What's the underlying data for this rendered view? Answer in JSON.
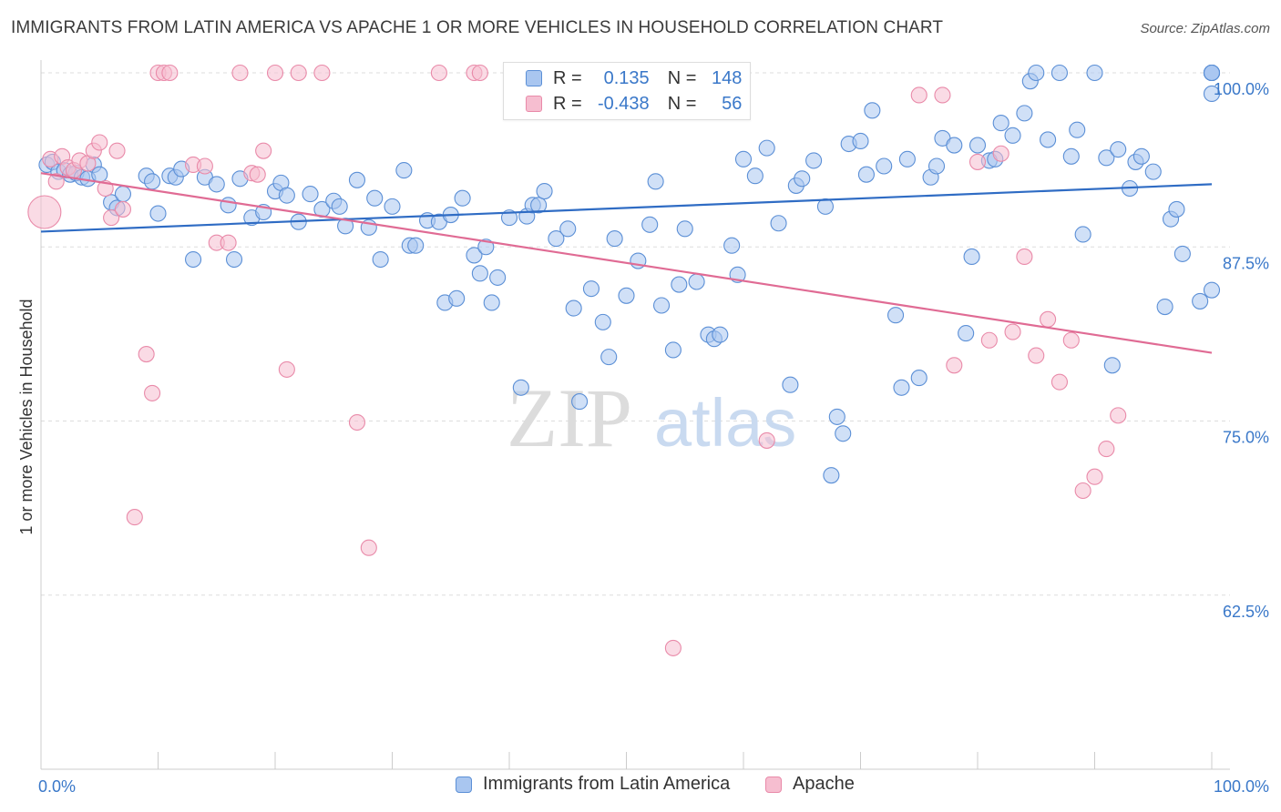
{
  "title": "IMMIGRANTS FROM LATIN AMERICA VS APACHE 1 OR MORE VEHICLES IN HOUSEHOLD CORRELATION CHART",
  "source": "Source: ZipAtlas.com",
  "watermark": {
    "zip": "ZIP",
    "atlas": "atlas"
  },
  "colors": {
    "blue_fill": "#a9c6f0",
    "blue_stroke": "#5b8fd6",
    "blue_line": "#2f6cc4",
    "pink_fill": "#f6bed0",
    "pink_stroke": "#e98aa9",
    "pink_line": "#e06b94",
    "axis_text": "#3a78c9",
    "grid": "#dddddd"
  },
  "stats": {
    "r_label": "R =",
    "n_label": "N =",
    "rows": [
      {
        "r": "0.135",
        "n": "148"
      },
      {
        "r": "-0.438",
        "n": "56"
      }
    ]
  },
  "chart_data": {
    "type": "scatter",
    "ylabel": "1 or more Vehicles in Household",
    "xlabel": "",
    "xlim": [
      0,
      100
    ],
    "ylim": [
      50,
      100
    ],
    "x_tick_labels": {
      "left": "0.0%",
      "right": "100.0%"
    },
    "y_ticks": [
      {
        "value": 100,
        "label": "100.0%"
      },
      {
        "value": 87.5,
        "label": "87.5%"
      },
      {
        "value": 75,
        "label": "75.0%"
      },
      {
        "value": 62.5,
        "label": "62.5%"
      }
    ],
    "grid": true,
    "legend_position": "bottom",
    "series": [
      {
        "name": "Immigrants from Latin America",
        "trend": [
          [
            0,
            88.6
          ],
          [
            100,
            92.0
          ]
        ],
        "points": [
          [
            0.5,
            93.4
          ],
          [
            1.0,
            93.6
          ],
          [
            1.5,
            92.9
          ],
          [
            2.0,
            93.0
          ],
          [
            2.5,
            92.7
          ],
          [
            3.0,
            92.8
          ],
          [
            3.5,
            92.5
          ],
          [
            4.0,
            92.4
          ],
          [
            4.5,
            93.4
          ],
          [
            5.0,
            92.7
          ],
          [
            6.0,
            90.7
          ],
          [
            6.5,
            90.3
          ],
          [
            7.0,
            91.3
          ],
          [
            9.0,
            92.6
          ],
          [
            9.5,
            92.2
          ],
          [
            10.0,
            89.9
          ],
          [
            11.0,
            92.6
          ],
          [
            11.5,
            92.5
          ],
          [
            12.0,
            93.1
          ],
          [
            13.0,
            86.6
          ],
          [
            14.0,
            92.5
          ],
          [
            15.0,
            92.0
          ],
          [
            16.0,
            90.5
          ],
          [
            16.5,
            86.6
          ],
          [
            17.0,
            92.4
          ],
          [
            18.0,
            89.6
          ],
          [
            19.0,
            90.0
          ],
          [
            20.0,
            91.5
          ],
          [
            20.5,
            92.1
          ],
          [
            21.0,
            91.2
          ],
          [
            22.0,
            89.3
          ],
          [
            23.0,
            91.3
          ],
          [
            24.0,
            90.2
          ],
          [
            25.0,
            90.8
          ],
          [
            25.5,
            90.4
          ],
          [
            26.0,
            89.0
          ],
          [
            27.0,
            92.3
          ],
          [
            28.0,
            88.9
          ],
          [
            28.5,
            91.0
          ],
          [
            29.0,
            86.6
          ],
          [
            30.0,
            90.4
          ],
          [
            31.0,
            93.0
          ],
          [
            31.5,
            87.6
          ],
          [
            32.0,
            87.6
          ],
          [
            33.0,
            89.4
          ],
          [
            34.0,
            89.3
          ],
          [
            34.5,
            83.5
          ],
          [
            35.0,
            89.8
          ],
          [
            35.5,
            83.8
          ],
          [
            36.0,
            91.0
          ],
          [
            37.0,
            86.9
          ],
          [
            37.5,
            85.6
          ],
          [
            38.0,
            87.5
          ],
          [
            38.5,
            83.5
          ],
          [
            39.0,
            85.3
          ],
          [
            40.0,
            89.6
          ],
          [
            41.0,
            77.4
          ],
          [
            41.5,
            89.7
          ],
          [
            42.0,
            90.5
          ],
          [
            42.5,
            90.5
          ],
          [
            43.0,
            91.5
          ],
          [
            44.0,
            88.1
          ],
          [
            45.0,
            88.8
          ],
          [
            45.5,
            83.1
          ],
          [
            46.0,
            76.4
          ],
          [
            47.0,
            84.5
          ],
          [
            48.0,
            82.1
          ],
          [
            48.5,
            79.6
          ],
          [
            49.0,
            88.1
          ],
          [
            50.0,
            84.0
          ],
          [
            51.0,
            86.5
          ],
          [
            52.0,
            89.1
          ],
          [
            52.5,
            92.2
          ],
          [
            53.0,
            83.3
          ],
          [
            54.0,
            80.1
          ],
          [
            54.5,
            84.8
          ],
          [
            55.0,
            88.8
          ],
          [
            56.0,
            85.0
          ],
          [
            57.0,
            81.2
          ],
          [
            57.5,
            80.9
          ],
          [
            58.0,
            81.2
          ],
          [
            59.0,
            87.6
          ],
          [
            59.5,
            85.5
          ],
          [
            60.0,
            93.8
          ],
          [
            61.0,
            92.6
          ],
          [
            62.0,
            94.6
          ],
          [
            63.0,
            89.2
          ],
          [
            64.0,
            77.6
          ],
          [
            64.5,
            91.9
          ],
          [
            65.0,
            92.4
          ],
          [
            66.0,
            93.7
          ],
          [
            67.0,
            90.4
          ],
          [
            67.5,
            71.1
          ],
          [
            68.0,
            75.3
          ],
          [
            68.5,
            74.1
          ],
          [
            69.0,
            94.9
          ],
          [
            70.0,
            95.1
          ],
          [
            70.5,
            92.7
          ],
          [
            71.0,
            97.3
          ],
          [
            72.0,
            93.3
          ],
          [
            73.0,
            82.6
          ],
          [
            73.5,
            77.4
          ],
          [
            74.0,
            93.8
          ],
          [
            75.0,
            78.1
          ],
          [
            76.0,
            92.5
          ],
          [
            76.5,
            93.3
          ],
          [
            77.0,
            95.3
          ],
          [
            78.0,
            94.8
          ],
          [
            79.0,
            81.3
          ],
          [
            79.5,
            86.8
          ],
          [
            80.0,
            94.8
          ],
          [
            81.0,
            93.7
          ],
          [
            81.5,
            93.8
          ],
          [
            82.0,
            96.4
          ],
          [
            83.0,
            95.5
          ],
          [
            84.0,
            97.1
          ],
          [
            84.5,
            99.4
          ],
          [
            85.0,
            100
          ],
          [
            86.0,
            95.2
          ],
          [
            87.0,
            100
          ],
          [
            88.0,
            94.0
          ],
          [
            88.5,
            95.9
          ],
          [
            89.0,
            88.4
          ],
          [
            90.0,
            100
          ],
          [
            91.0,
            93.9
          ],
          [
            91.5,
            79.0
          ],
          [
            92.0,
            94.5
          ],
          [
            93.0,
            91.7
          ],
          [
            93.5,
            93.6
          ],
          [
            94.0,
            94.0
          ],
          [
            95.0,
            92.9
          ],
          [
            96.0,
            83.2
          ],
          [
            96.5,
            89.5
          ],
          [
            97.0,
            90.2
          ],
          [
            97.5,
            87.0
          ],
          [
            99.0,
            83.6
          ],
          [
            100,
            84.4
          ],
          [
            100,
            100
          ],
          [
            100,
            100
          ],
          [
            100,
            100
          ],
          [
            100,
            100
          ],
          [
            100,
            100
          ],
          [
            100,
            98.5
          ],
          [
            100,
            100
          ]
        ]
      },
      {
        "name": "Apache",
        "trend": [
          [
            0,
            92.8
          ],
          [
            100,
            79.9
          ]
        ],
        "points": [
          [
            0.3,
            90.0
          ],
          [
            0.8,
            93.8
          ],
          [
            1.3,
            92.2
          ],
          [
            1.8,
            94.0
          ],
          [
            2.3,
            93.2
          ],
          [
            2.8,
            93.0
          ],
          [
            3.3,
            93.7
          ],
          [
            4.0,
            93.5
          ],
          [
            4.5,
            94.4
          ],
          [
            5.0,
            95.0
          ],
          [
            5.5,
            91.7
          ],
          [
            6.0,
            89.6
          ],
          [
            6.5,
            94.4
          ],
          [
            7.0,
            90.2
          ],
          [
            8.0,
            68.1
          ],
          [
            9.0,
            79.8
          ],
          [
            9.5,
            77.0
          ],
          [
            10.0,
            100
          ],
          [
            10.5,
            100
          ],
          [
            11.0,
            100
          ],
          [
            13.0,
            93.4
          ],
          [
            14.0,
            93.3
          ],
          [
            15.0,
            87.8
          ],
          [
            16.0,
            87.8
          ],
          [
            17.0,
            100
          ],
          [
            18.0,
            92.8
          ],
          [
            18.5,
            92.7
          ],
          [
            19.0,
            94.4
          ],
          [
            20.0,
            100
          ],
          [
            21.0,
            78.7
          ],
          [
            22.0,
            100
          ],
          [
            24.0,
            100
          ],
          [
            27.0,
            74.9
          ],
          [
            28.0,
            65.9
          ],
          [
            34.0,
            100
          ],
          [
            37.0,
            100
          ],
          [
            37.5,
            100
          ],
          [
            51.0,
            100
          ],
          [
            54.0,
            58.7
          ],
          [
            62.0,
            73.6
          ],
          [
            75.0,
            98.4
          ],
          [
            77.0,
            98.4
          ],
          [
            78.0,
            79.0
          ],
          [
            80.0,
            93.6
          ],
          [
            81.0,
            80.8
          ],
          [
            82.0,
            94.2
          ],
          [
            83.0,
            81.4
          ],
          [
            84.0,
            86.8
          ],
          [
            85.0,
            79.7
          ],
          [
            86.0,
            82.3
          ],
          [
            87.0,
            77.8
          ],
          [
            88.0,
            80.8
          ],
          [
            89.0,
            70.0
          ],
          [
            90.0,
            71.0
          ],
          [
            91.0,
            73.0
          ],
          [
            92.0,
            75.4
          ]
        ]
      }
    ]
  },
  "legend": [
    {
      "label": "Immigrants from Latin America"
    },
    {
      "label": "Apache"
    }
  ]
}
